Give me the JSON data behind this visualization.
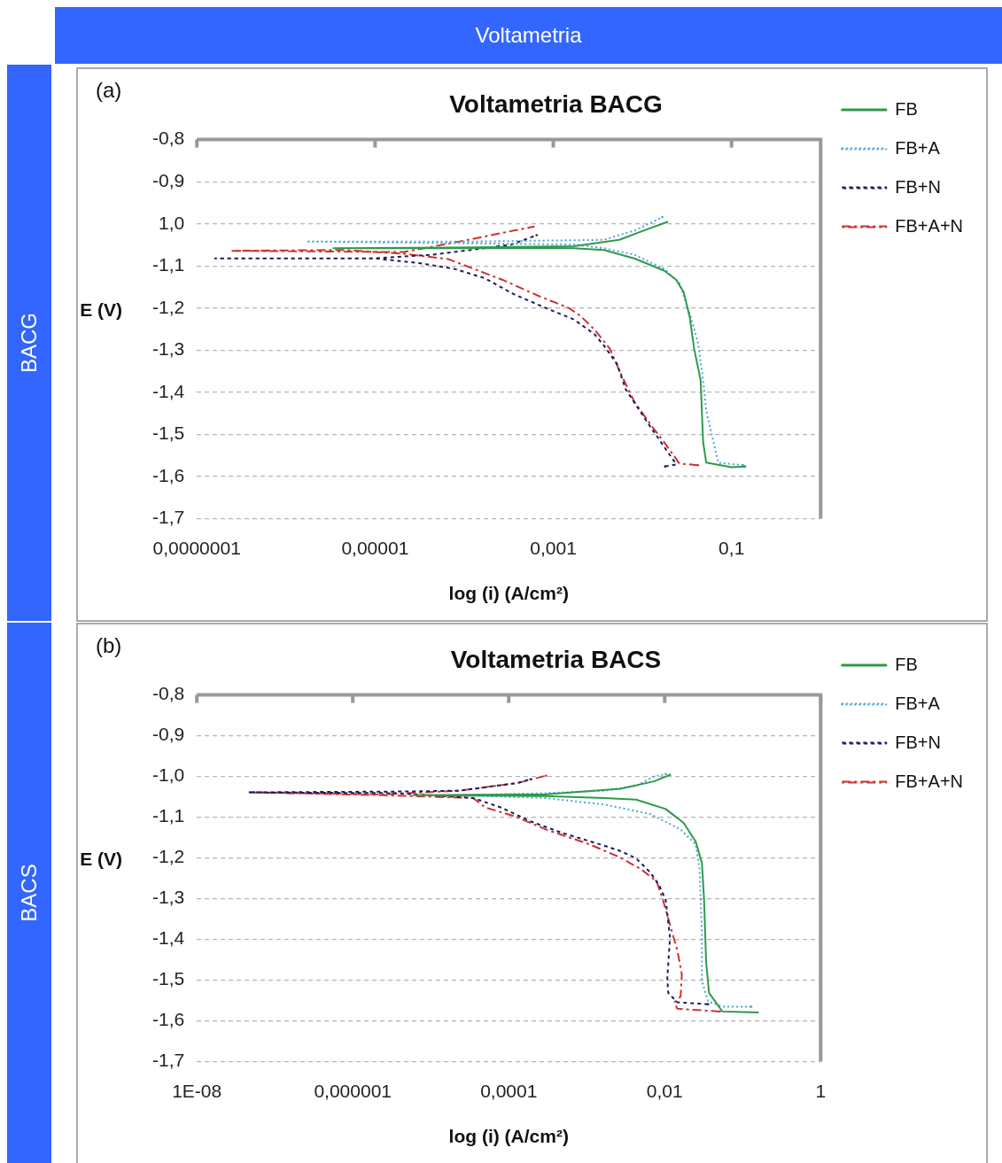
{
  "chart_data": [
    {
      "type": "line",
      "title": "Voltametria BACG",
      "xlabel": "log (i) (A/cm²)",
      "ylabel": "E (V)",
      "log": "x",
      "grid": "y",
      "legend": "right",
      "annotations": [
        "BACG",
        "(a)",
        "Voltametria"
      ],
      "xlim": [
        1e-07,
        1
      ],
      "xticks": [
        {
          "value": 1e-07,
          "label": "0,0000001"
        },
        {
          "value": 1e-05,
          "label": "0,00001"
        },
        {
          "value": 0.001,
          "label": "0,001"
        },
        {
          "value": 0.1,
          "label": "0,1"
        }
      ],
      "ylim": [
        -1.7,
        -0.8
      ],
      "yticks": [
        {
          "value": -0.8,
          "label": "-0,8"
        },
        {
          "value": -0.9,
          "label": "-0,9"
        },
        {
          "value": -1.0,
          "label": "1,0"
        },
        {
          "value": -1.1,
          "label": "-1,1"
        },
        {
          "value": -1.2,
          "label": "-1,2"
        },
        {
          "value": -1.3,
          "label": "-1,3"
        },
        {
          "value": -1.4,
          "label": "-1,4"
        },
        {
          "value": -1.5,
          "label": "-1,5"
        },
        {
          "value": -1.6,
          "label": "-1,6"
        },
        {
          "value": -1.7,
          "label": "-1,7"
        }
      ],
      "series": [
        {
          "name": "FB",
          "color": "#2e9a4a",
          "line_style": "solid",
          "x": [
            0.142,
            0.1,
            0.052,
            0.048,
            0.045,
            0.038,
            0.034,
            0.029,
            0.024,
            0.0175,
            0.0081,
            0.0037,
            0.0017,
            3.4e-06,
            0.00013,
            0.0017,
            0.0055,
            0.0103,
            0.0188
          ],
          "values": [
            -1.576,
            -1.578,
            -1.567,
            -1.518,
            -1.371,
            -1.296,
            -1.222,
            -1.162,
            -1.133,
            -1.111,
            -1.082,
            -1.062,
            -1.058,
            -1.058,
            -1.056,
            -1.053,
            -1.038,
            -1.016,
            -0.996
          ]
        },
        {
          "name": "FB+A",
          "color": "#4aa6d6",
          "line_style": "dotted",
          "x": [
            0.135,
            0.071,
            0.052,
            0.048,
            0.042,
            0.035,
            0.026,
            0.0175,
            0.0081,
            0.0037,
            0.0017,
            1.7e-06,
            0.00013,
            0.0037,
            0.0081,
            0.0129,
            0.0167
          ],
          "values": [
            -1.573,
            -1.567,
            -1.444,
            -1.371,
            -1.282,
            -1.222,
            -1.14,
            -1.107,
            -1.073,
            -1.058,
            -1.049,
            -1.042,
            -1.042,
            -1.038,
            -1.016,
            -0.996,
            -0.984
          ]
        },
        {
          "name": "FB+N",
          "color": "#1c1c5c",
          "line_style": "dashed",
          "x": [
            0.018,
            0.024,
            0.0175,
            0.0115,
            0.0065,
            0.0052,
            0.0037,
            0.0029,
            0.0017,
            0.00092,
            0.00036,
            0.00017,
            7.8e-05,
            3.1e-05,
            9.7e-06,
            1.6e-07,
            9.7e-06,
            4.5e-05,
            0.00012,
            0.00034,
            0.00065
          ],
          "values": [
            -1.576,
            -1.571,
            -1.529,
            -1.473,
            -1.393,
            -1.333,
            -1.289,
            -1.262,
            -1.227,
            -1.204,
            -1.167,
            -1.129,
            -1.107,
            -1.093,
            -1.082,
            -1.082,
            -1.082,
            -1.073,
            -1.062,
            -1.049,
            -1.027
          ]
        },
        {
          "name": "FB+A+N",
          "color": "#cc3333",
          "line_style": "dashdot",
          "x": [
            0.042,
            0.026,
            0.0175,
            0.0129,
            0.0081,
            0.0059,
            0.0043,
            0.0029,
            0.002,
            0.0015,
            0.00068,
            0.00027,
            6.7e-05,
            2.1e-05,
            4.4e-06,
            2.5e-07,
            2.1e-05,
            9.9e-05,
            0.00036,
            0.0006
          ],
          "values": [
            -1.573,
            -1.569,
            -1.518,
            -1.482,
            -1.422,
            -1.362,
            -1.296,
            -1.251,
            -1.218,
            -1.2,
            -1.171,
            -1.133,
            -1.084,
            -1.071,
            -1.062,
            -1.064,
            -1.067,
            -1.04,
            -1.016,
            -1.007
          ]
        }
      ]
    },
    {
      "type": "line",
      "title": "Voltametria BACS",
      "xlabel": "log (i) (A/cm²)",
      "ylabel": "E (V)",
      "log": "x",
      "grid": "y",
      "legend": "right",
      "annotations": [
        "BACS",
        "(b)"
      ],
      "xlim": [
        1e-08,
        1
      ],
      "xticks": [
        {
          "value": 1e-08,
          "label": "1E-08"
        },
        {
          "value": 1e-06,
          "label": "0,000001"
        },
        {
          "value": 0.0001,
          "label": "0,0001"
        },
        {
          "value": 0.01,
          "label": "0,01"
        },
        1
      ],
      "ylim": [
        -1.7,
        -0.8
      ],
      "yticks": [
        {
          "value": -0.8,
          "label": "-0,8"
        },
        {
          "value": -0.9,
          "label": "-0,9"
        },
        {
          "value": -1.0,
          "label": "-1,0"
        },
        {
          "value": -1.1,
          "label": "-1,1"
        },
        {
          "value": -1.2,
          "label": "-1,2"
        },
        {
          "value": -1.3,
          "label": "-1,3"
        },
        {
          "value": -1.4,
          "label": "-1,4"
        },
        {
          "value": -1.5,
          "label": "-1,5"
        },
        {
          "value": -1.6,
          "label": "-1,6"
        },
        {
          "value": -1.7,
          "label": "-1,7"
        }
      ],
      "series": [
        {
          "name": "FB",
          "color": "#2e9a4a",
          "line_style": "solid",
          "x": [
            0.155,
            0.055,
            0.037,
            0.034,
            0.032,
            0.03,
            0.025,
            0.0175,
            0.0103,
            0.0043,
            0.0017,
            0.0003,
            6e-06,
            0.0003,
            0.0027,
            0.0073,
            0.0117
          ],
          "values": [
            -1.579,
            -1.577,
            -1.531,
            -1.456,
            -1.303,
            -1.212,
            -1.16,
            -1.114,
            -1.08,
            -1.057,
            -1.053,
            -1.048,
            -1.046,
            -1.044,
            -1.03,
            -1.012,
            -0.996
          ]
        },
        {
          "name": "FB+A",
          "color": "#4aa6d6",
          "line_style": "dotted",
          "x": [
            0.129,
            0.055,
            0.036,
            0.03,
            0.03,
            0.028,
            0.025,
            0.016,
            0.0065,
            0.0017,
            0.0003,
            2.3e-05,
            0.0003,
            0.0017,
            0.0043,
            0.0073,
            0.0103
          ],
          "values": [
            -1.565,
            -1.565,
            -1.552,
            -1.502,
            -1.381,
            -1.228,
            -1.167,
            -1.13,
            -1.092,
            -1.069,
            -1.053,
            -1.046,
            -1.041,
            -1.035,
            -1.023,
            -1.0,
            -0.994
          ]
        },
        {
          "name": "FB+N",
          "color": "#1c1c5c",
          "line_style": "dashed",
          "x": [
            0.036,
            0.0145,
            0.0111,
            0.0108,
            0.0117,
            0.0103,
            0.0085,
            0.0065,
            0.0043,
            0.0027,
            0.0015,
            0.00046,
            0.00019,
            7.9e-05,
            3.5e-05,
            3.8e-06,
            4.6e-08,
            3.8e-06,
            2.3e-05,
            0.00013,
            0.00019
          ],
          "values": [
            -1.559,
            -1.554,
            -1.531,
            -1.495,
            -1.395,
            -1.303,
            -1.267,
            -1.235,
            -1.201,
            -1.183,
            -1.167,
            -1.137,
            -1.11,
            -1.076,
            -1.053,
            -1.041,
            -1.039,
            -1.037,
            -1.035,
            -1.016,
            -1.007
          ]
        },
        {
          "name": "FB+A+N",
          "color": "#cc3333",
          "line_style": "dashdot",
          "x": [
            0.051,
            0.0145,
            0.0134,
            0.016,
            0.0166,
            0.0145,
            0.0124,
            0.0095,
            0.0079,
            0.005,
            0.0027,
            0.0011,
            0.0003,
            0.00012,
            5e-05,
            3.5e-05,
            2.5e-06,
            4.6e-08,
            2.5e-06,
            2.3e-05,
            0.00013,
            0.0003
          ],
          "values": [
            -1.577,
            -1.57,
            -1.554,
            -1.54,
            -1.486,
            -1.426,
            -1.381,
            -1.303,
            -1.258,
            -1.228,
            -1.199,
            -1.167,
            -1.13,
            -1.098,
            -1.076,
            -1.053,
            -1.046,
            -1.039,
            -1.044,
            -1.035,
            -1.016,
            -0.998
          ]
        }
      ]
    }
  ]
}
